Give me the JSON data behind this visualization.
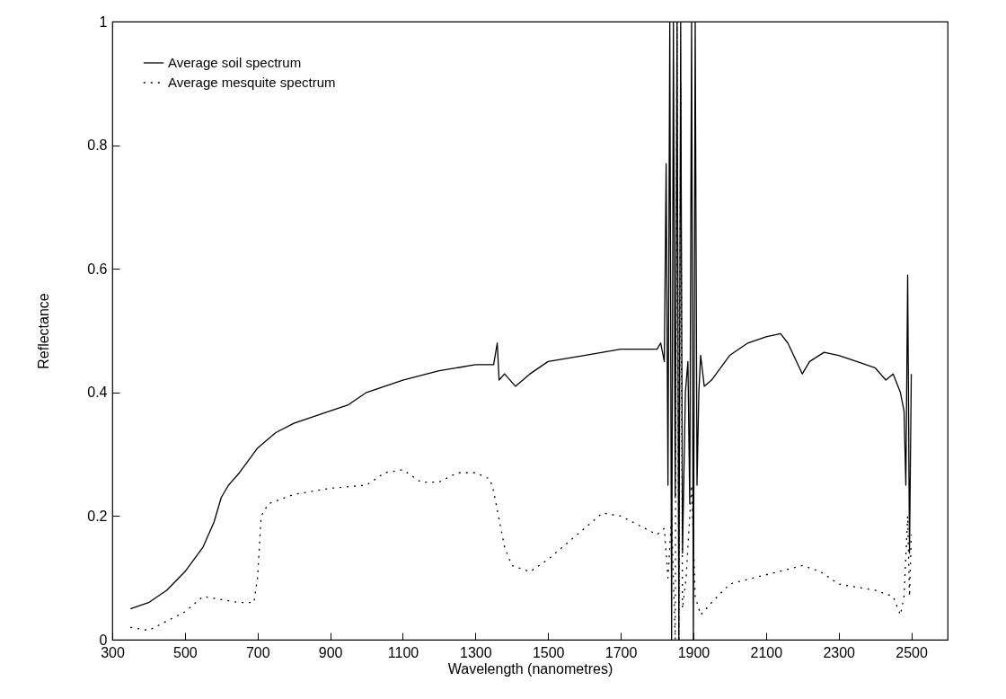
{
  "chart_data": {
    "type": "line",
    "xlabel": "Wavelength (nanometres)",
    "ylabel": "Reflectance",
    "xlim": [
      300,
      2600
    ],
    "xticks": [
      300,
      500,
      700,
      900,
      1100,
      1300,
      1500,
      1700,
      1900,
      2100,
      2300,
      2500
    ],
    "ylim": [
      0,
      1
    ],
    "yticks": [
      0,
      0.2,
      0.4,
      0.6,
      0.8,
      1
    ],
    "grid": false,
    "legend": "top left",
    "marker": "none",
    "series": [
      {
        "name": "Average soil spectrum",
        "color": "#000000",
        "line_style": "solid",
        "x": [
          350,
          400,
          450,
          500,
          550,
          580,
          600,
          620,
          650,
          700,
          750,
          800,
          900,
          950,
          1000,
          1100,
          1200,
          1300,
          1350,
          1360,
          1365,
          1380,
          1410,
          1450,
          1500,
          1600,
          1700,
          1800,
          1810,
          1820,
          1825,
          1830,
          1835,
          1840,
          1845,
          1850,
          1855,
          1860,
          1865,
          1870,
          1878,
          1885,
          1890,
          1895,
          1900,
          1905,
          1910,
          1915,
          1920,
          1930,
          1950,
          2000,
          2050,
          2100,
          2140,
          2160,
          2200,
          2220,
          2260,
          2300,
          2350,
          2400,
          2430,
          2450,
          2470,
          2480,
          2485,
          2490,
          2495,
          2500
        ],
        "values": [
          0.05,
          0.06,
          0.08,
          0.11,
          0.15,
          0.19,
          0.23,
          0.25,
          0.27,
          0.31,
          0.335,
          0.35,
          0.37,
          0.38,
          0.4,
          0.42,
          0.435,
          0.445,
          0.445,
          0.48,
          0.42,
          0.43,
          0.41,
          0.43,
          0.45,
          0.46,
          0.47,
          0.47,
          0.48,
          0.45,
          0.77,
          0.25,
          1,
          0,
          1,
          0.23,
          1,
          0,
          1,
          0.14,
          0.4,
          0.45,
          0.22,
          1,
          0,
          1,
          0.25,
          0.4,
          0.46,
          0.41,
          0.42,
          0.46,
          0.48,
          0.49,
          0.495,
          0.48,
          0.43,
          0.45,
          0.465,
          0.46,
          0.45,
          0.44,
          0.42,
          0.43,
          0.4,
          0.37,
          0.25,
          0.59,
          0.14,
          0.43
        ]
      },
      {
        "name": "Average mesquite spectrum",
        "color": "#000000",
        "line_style": "dotted",
        "x": [
          350,
          400,
          450,
          500,
          550,
          600,
          650,
          690,
          700,
          710,
          730,
          800,
          900,
          1000,
          1050,
          1100,
          1150,
          1200,
          1250,
          1300,
          1340,
          1350,
          1380,
          1400,
          1450,
          1500,
          1600,
          1650,
          1700,
          1750,
          1800,
          1820,
          1830,
          1840,
          1850,
          1855,
          1860,
          1865,
          1870,
          1880,
          1895,
          1905,
          1920,
          1950,
          2000,
          2100,
          2200,
          2250,
          2300,
          2400,
          2450,
          2470,
          2480,
          2490,
          2495,
          2500
        ],
        "values": [
          0.02,
          0.015,
          0.03,
          0.045,
          0.07,
          0.065,
          0.06,
          0.06,
          0.1,
          0.2,
          0.22,
          0.235,
          0.245,
          0.25,
          0.27,
          0.275,
          0.255,
          0.255,
          0.27,
          0.27,
          0.26,
          0.24,
          0.15,
          0.12,
          0.11,
          0.13,
          0.18,
          0.205,
          0.2,
          0.185,
          0.17,
          0.18,
          0.1,
          0.2,
          0,
          1,
          0,
          0.9,
          0.05,
          0.1,
          0.25,
          0.07,
          0.04,
          0.06,
          0.09,
          0.105,
          0.12,
          0.11,
          0.09,
          0.08,
          0.07,
          0.04,
          0.07,
          0.2,
          0.07,
          0.17
        ]
      }
    ]
  }
}
